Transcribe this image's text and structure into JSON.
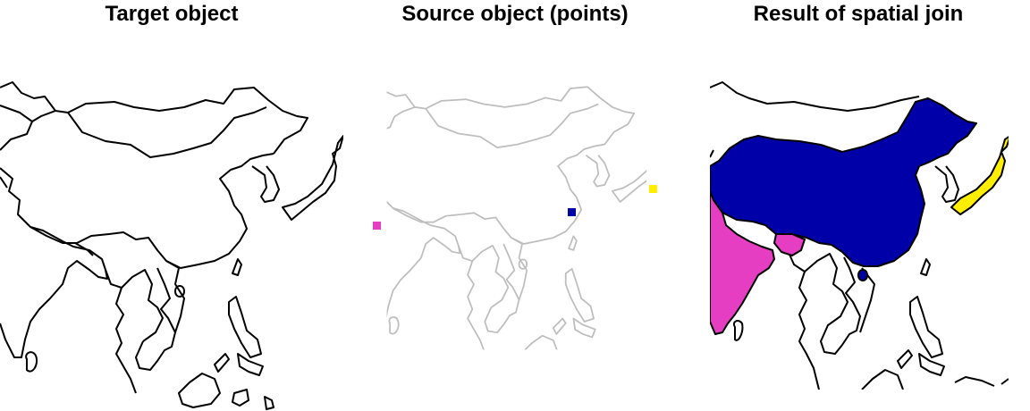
{
  "panels": [
    {
      "title": "Target object"
    },
    {
      "title": "Source object (points)"
    },
    {
      "title": "Result of spatial join"
    }
  ],
  "colors": {
    "pink": "#e63ec3",
    "blue": "#0000a8",
    "yellow": "#ffee00",
    "outline_dark": "#000000",
    "outline_grey": "#bdbdbd"
  },
  "points": [
    {
      "name": "India point",
      "color": "pink"
    },
    {
      "name": "China point",
      "color": "blue"
    },
    {
      "name": "Japan point",
      "color": "yellow"
    }
  ]
}
